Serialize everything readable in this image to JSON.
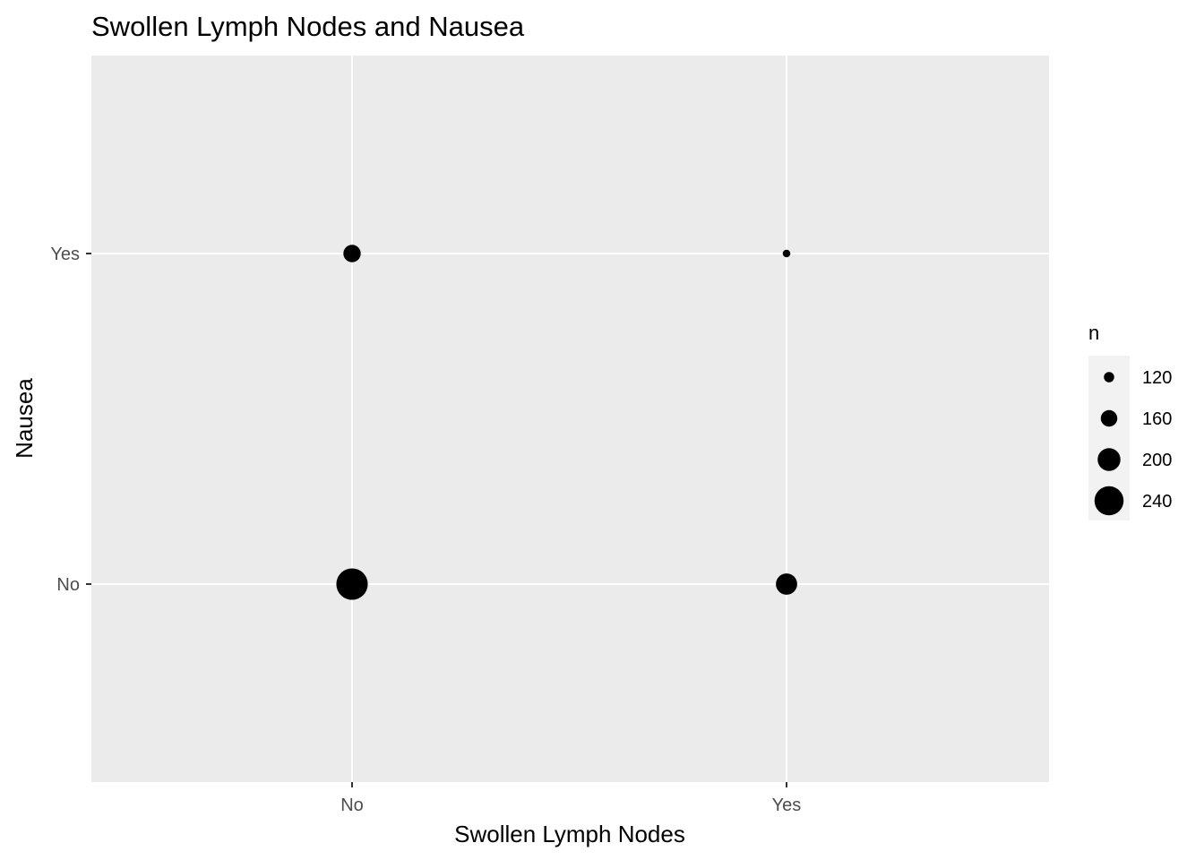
{
  "chart_data": {
    "type": "scatter",
    "title": "Swollen Lymph Nodes and Nausea",
    "xlabel": "Swollen Lymph Nodes",
    "ylabel": "Nausea",
    "x_categories": [
      "No",
      "Yes"
    ],
    "y_categories": [
      "No",
      "Yes"
    ],
    "size_variable": "n",
    "points": [
      {
        "x": "No",
        "y": "Yes",
        "n": 165
      },
      {
        "x": "Yes",
        "y": "Yes",
        "n": 103
      },
      {
        "x": "No",
        "y": "No",
        "n": 255
      },
      {
        "x": "Yes",
        "y": "No",
        "n": 190
      }
    ],
    "legend": {
      "title": "n",
      "placement": "right",
      "entries": [
        {
          "label": "120",
          "value": 120
        },
        {
          "label": "160",
          "value": 160
        },
        {
          "label": "200",
          "value": 200
        },
        {
          "label": "240",
          "value": 240
        }
      ]
    },
    "size_range": [
      100,
      260
    ],
    "grid": true,
    "colors": {
      "panel": "#ebebeb",
      "grid": "#ffffff",
      "point": "#000000",
      "tick_text": "#4d4d4d",
      "legend_key_bg": "#f2f2f2"
    }
  }
}
